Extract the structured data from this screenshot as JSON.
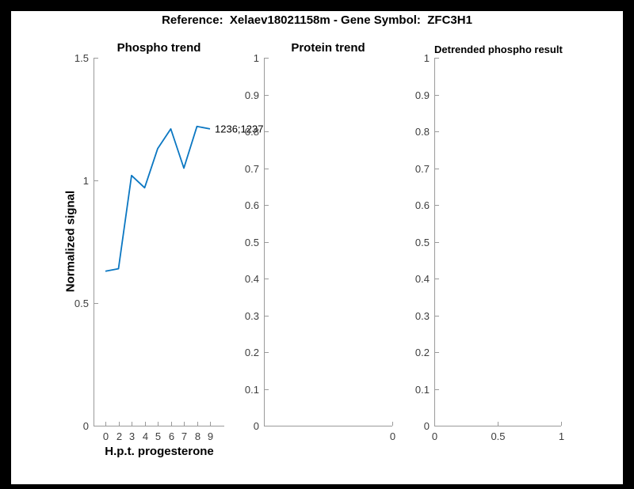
{
  "header": {
    "title": "Reference:  Xelaev18021158m - Gene Symbol:  ZFC3H1"
  },
  "colors": {
    "line": "#0b77c2",
    "axis": "#9a9a9a",
    "tick_label": "#3d3d3d",
    "title_text": "#000000",
    "figure_bg": "#ffffff",
    "page_bg": "#000000"
  },
  "chart_data": [
    {
      "type": "line",
      "title": "Phospho trend",
      "xlabel": "H.p.t. progesterone",
      "ylabel": "Normalized signal",
      "categories": [
        "0",
        "2",
        "3",
        "4",
        "5",
        "6",
        "7",
        "8",
        "9"
      ],
      "values": [
        0.63,
        0.64,
        1.02,
        0.97,
        1.13,
        1.21,
        1.05,
        1.22,
        1.21
      ],
      "ylim": [
        0,
        1.5
      ],
      "y_ticks": [
        "0",
        "0.5",
        "1",
        "1.5"
      ],
      "x_ticks": [
        "0",
        "2",
        "3",
        "4",
        "5",
        "6",
        "7",
        "8",
        "9"
      ],
      "annotation": "1236;1237",
      "grid": false,
      "legend": null
    },
    {
      "type": "line",
      "title": "Protein trend",
      "xlabel": "",
      "ylabel": "",
      "categories": [],
      "values": [],
      "ylim": [
        0,
        1
      ],
      "y_ticks": [
        "0",
        "0.1",
        "0.2",
        "0.3",
        "0.4",
        "0.5",
        "0.6",
        "0.7",
        "0.8",
        "0.9",
        "1"
      ],
      "x_ticks": [
        "0"
      ],
      "annotation": null,
      "grid": false,
      "legend": null
    },
    {
      "type": "line",
      "title": "Detrended phospho result",
      "xlabel": "",
      "ylabel": "",
      "categories": [],
      "values": [],
      "ylim": [
        0,
        1
      ],
      "y_ticks": [
        "0",
        "0.1",
        "0.2",
        "0.3",
        "0.4",
        "0.5",
        "0.6",
        "0.7",
        "0.8",
        "0.9",
        "1"
      ],
      "x_ticks": [
        "0",
        "0.5",
        "1"
      ],
      "annotation": null,
      "grid": false,
      "legend": null
    }
  ]
}
